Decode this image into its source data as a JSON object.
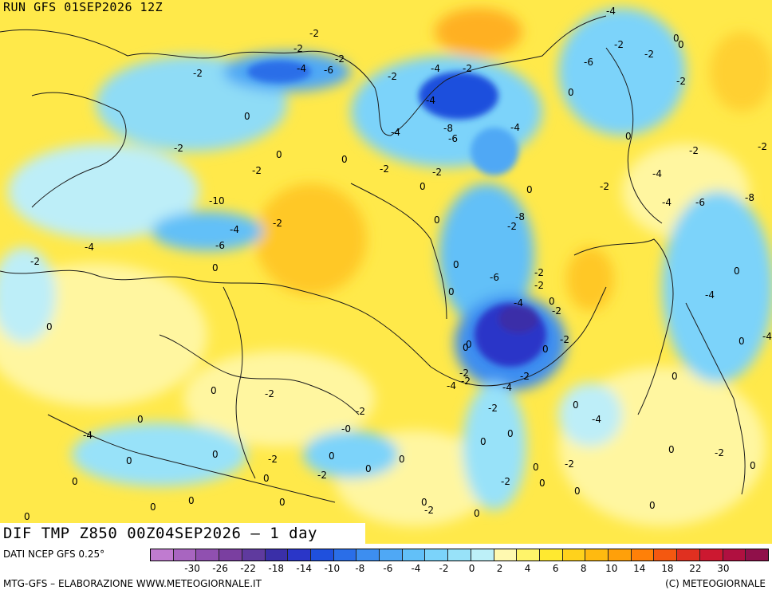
{
  "run_label": "RUN GFS 01SEP2026 12Z",
  "title": "DIF TMP Z850 00Z04SEP2026 – 1 day",
  "source": "DATI NCEP GFS 0.25°",
  "credit": "MTG-GFS – ELABORAZIONE WWW.METEOGIORNALE.IT",
  "copyright": "(C) METEOGIORNALE",
  "colorbar": {
    "colors": [
      "#c07bd0",
      "#a865c0",
      "#9050b0",
      "#7a3fa0",
      "#5f3a9e",
      "#3a2fa8",
      "#2a36c8",
      "#1f50dd",
      "#2a6ee8",
      "#3d8ef0",
      "#4fa8f5",
      "#62c0f8",
      "#7bd3fa",
      "#98e2f9",
      "#bdf0f8",
      "#fff9b0",
      "#fff46a",
      "#ffe930",
      "#ffd21c",
      "#ffba10",
      "#ffa00a",
      "#ff8008",
      "#f45810",
      "#e03020",
      "#cc1830",
      "#b01040",
      "#90104a"
    ],
    "tick_labels": [
      "-30",
      "-26",
      "-22",
      "-18",
      "-14",
      "-10",
      "-8",
      "-6",
      "-4",
      "-2",
      "0",
      "2",
      "4",
      "6",
      "8",
      "10",
      "14",
      "18",
      "22",
      "30"
    ]
  },
  "contour_labels": [
    "-4",
    "-2",
    "-2",
    "-4",
    "-6",
    "-2",
    "-2",
    "-2",
    "-4",
    "-2",
    "-4",
    "-8",
    "-6",
    "-4",
    "-6",
    "-2",
    "0",
    "0",
    "-2",
    "-2",
    "0",
    "0",
    "-2",
    "-2",
    "0",
    "-2",
    "0",
    "0",
    "-2",
    "-2",
    "-4",
    "-2",
    "0",
    "0",
    "-2",
    "-4",
    "-4",
    "-6",
    "-8",
    "-10",
    "-4",
    "-2",
    "0",
    "-2",
    "-8",
    "-6",
    "-4",
    "-2",
    "0",
    "0",
    "-6",
    "-2",
    "-2",
    "0",
    "0",
    "-4",
    "0",
    "-2",
    "-4",
    "0",
    "0",
    "0",
    "0",
    "-2",
    "0",
    "-4",
    "-2",
    "-2",
    "-4",
    "-4",
    "-2",
    "0",
    "0",
    "-2",
    "0",
    "-2",
    "-2",
    "0",
    "-4",
    "-0",
    "-4",
    "0",
    "0",
    "0",
    "-2",
    "0",
    "0",
    "0",
    "0",
    "0",
    "-2",
    "0",
    "-2",
    "0",
    "0",
    "0",
    "-2",
    "-2",
    "0",
    "0",
    "0",
    "0"
  ],
  "icons": [
    "run-label",
    "title-bar",
    "colorbar"
  ]
}
